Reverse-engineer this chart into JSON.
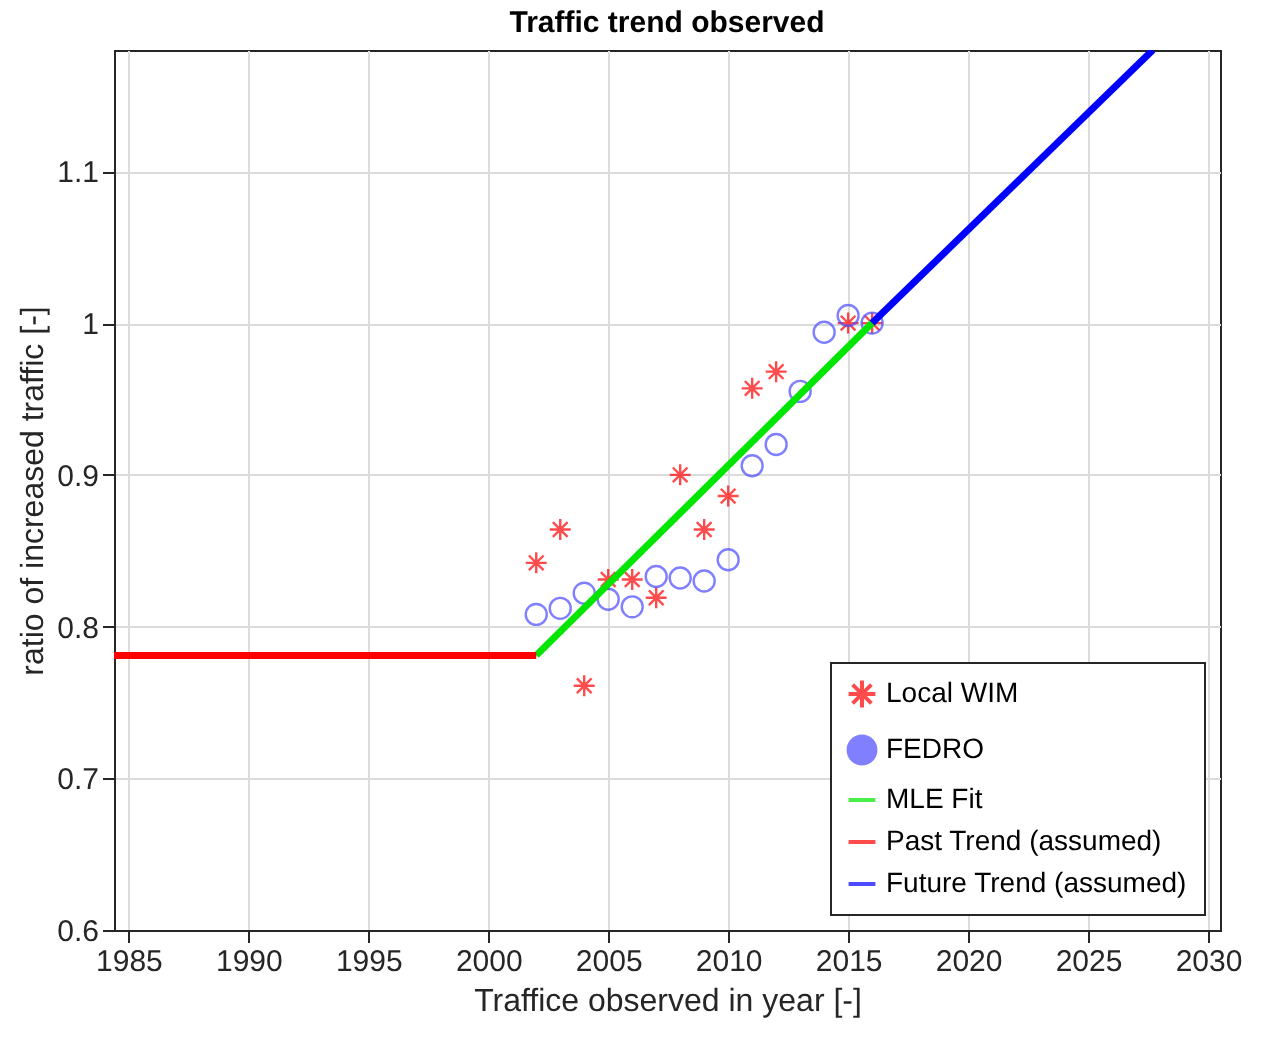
{
  "chart_data": {
    "type": "scatter",
    "title": "Traffic trend observed",
    "xlabel": "Traffice observed in year [-]",
    "ylabel": "ratio of increased traffic [-]",
    "xlim": [
      1984.4,
      2030.5
    ],
    "xticks": [
      1985,
      1990,
      1995,
      2000,
      2005,
      2010,
      2015,
      2020,
      2025,
      2030
    ],
    "ylim": [
      0.6,
      1.18
    ],
    "yticks": [
      0.6,
      0.7,
      0.8,
      0.9,
      1,
      1.1
    ],
    "grid": true,
    "legend": "bottom right",
    "series": [
      {
        "name": "Local WIM",
        "marker": "cross",
        "color": "#ff0000",
        "x": [
          2002,
          2003,
          2004,
          2005,
          2006,
          2007,
          2008,
          2009,
          2010,
          2011,
          2012,
          2015,
          2016
        ],
        "values": [
          0.842,
          0.864,
          0.761,
          0.831,
          0.831,
          0.819,
          0.9,
          0.864,
          0.886,
          0.957,
          0.968,
          1.0,
          1.0
        ]
      },
      {
        "name": "FEDRO",
        "marker": "circle",
        "color": "#4a4aff",
        "x": [
          2002,
          2003,
          2004,
          2005,
          2006,
          2007,
          2008,
          2009,
          2010,
          2011,
          2012,
          2013,
          2014,
          2015,
          2016
        ],
        "values": [
          0.808,
          0.812,
          0.822,
          0.818,
          0.813,
          0.833,
          0.832,
          0.83,
          0.844,
          0.906,
          0.92,
          0.955,
          0.994,
          1.005,
          1.0
        ]
      },
      {
        "name": "MLE Fit",
        "type": "line",
        "color": "#00e600",
        "x": [
          2002,
          2016
        ],
        "values": [
          0.781,
          1.0
        ]
      },
      {
        "name": "Past Trend (assumed)",
        "type": "line",
        "color": "#ff0000",
        "x": [
          1984.4,
          2002
        ],
        "values": [
          0.781,
          0.781
        ]
      },
      {
        "name": "Future Trend (assumed)",
        "type": "line",
        "color": "#0000ff",
        "x": [
          2016,
          2027.7
        ],
        "values": [
          1.0,
          1.18
        ]
      }
    ]
  }
}
